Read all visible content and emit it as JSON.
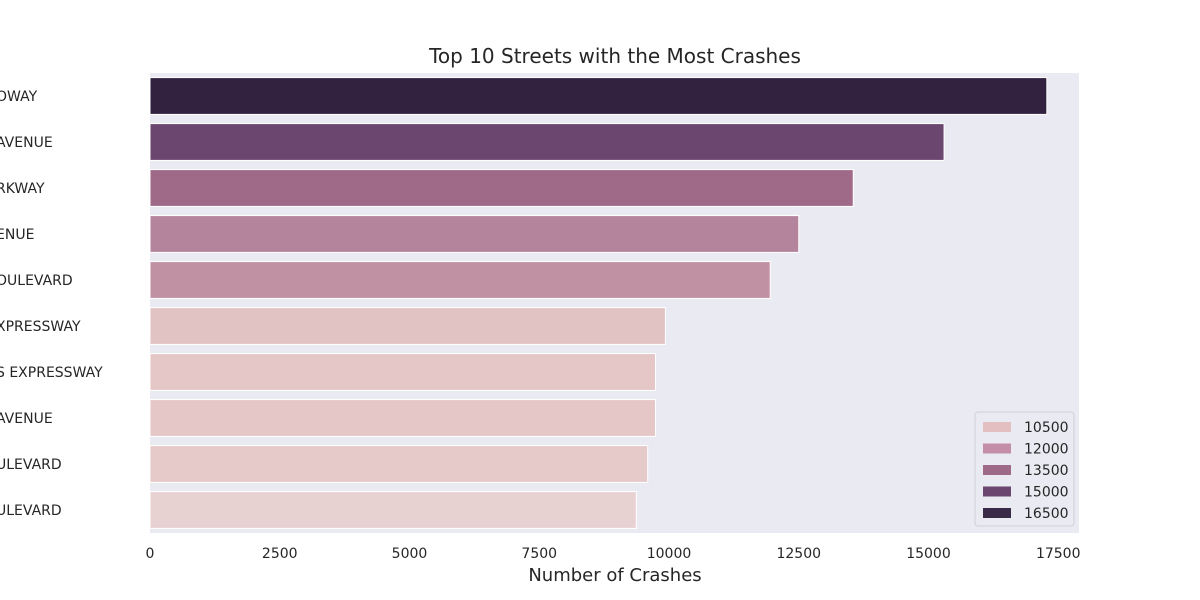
{
  "chart_data": {
    "type": "bar",
    "orientation": "horizontal",
    "title": "Top 10 Streets with the Most Crashes",
    "xlabel": "Number of Crashes",
    "ylabel": "",
    "xlim": [
      0,
      17900
    ],
    "xticks": [
      "0",
      "2500",
      "5000",
      "7500",
      "10000",
      "12500",
      "15000",
      "17500"
    ],
    "xtick_values": [
      0,
      2500,
      5000,
      7500,
      10000,
      12500,
      15000,
      17500
    ],
    "categories": [
      "DWAY",
      "AVENUE",
      "RKWAY",
      "ENUE",
      "OULEVARD",
      "XPRESSWAY",
      "S EXPRESSWAY",
      "AVENUE",
      "ULEVARD",
      "ULEVARD"
    ],
    "category_display": [
      "OWAY",
      " AVENUE",
      "RKWAY",
      "ENUE",
      "OULEVARD",
      "XPRESSWAY",
      "S EXPRESSWAY",
      " AVENUE",
      "ULEVARD",
      "ULEVARD"
    ],
    "values": [
      17280,
      15300,
      13550,
      12500,
      11950,
      9930,
      9740,
      9740,
      9590,
      9370
    ],
    "bar_colors": [
      "#322240",
      "#6b4770",
      "#9e6a88",
      "#b4849c",
      "#c090a3",
      "#e2c3c3",
      "#e4c7c6",
      "#e4c7c6",
      "#e6cac9",
      "#e8d2d1"
    ],
    "grid": false,
    "background": "#eaeaf2",
    "legend": {
      "placement": "lower-right",
      "entries": [
        {
          "label": "10500",
          "color": "#e3bfc1"
        },
        {
          "label": "12000",
          "color": "#c48ea6"
        },
        {
          "label": "13500",
          "color": "#9e6a88"
        },
        {
          "label": "15000",
          "color": "#6b4770"
        },
        {
          "label": "16500",
          "color": "#3a2a48"
        }
      ]
    }
  }
}
